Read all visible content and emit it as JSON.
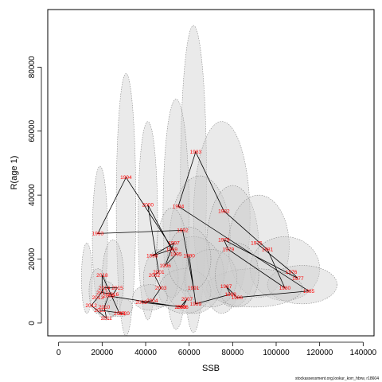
{
  "chart_data": {
    "type": "scatter",
    "title": "",
    "xlabel": "SSB",
    "ylabel": "R(age 1)",
    "xlim": [
      -5000,
      145000
    ],
    "ylim": [
      -4000,
      98000
    ],
    "xticks": [
      0,
      20000,
      40000,
      60000,
      80000,
      100000,
      120000,
      140000
    ],
    "yticks": [
      0,
      20000,
      40000,
      60000,
      80000
    ],
    "grid": false,
    "legend": "none",
    "point_label_color": "#ff0000",
    "ellipse_fill": "#cccccc",
    "line_color": "#000000",
    "points": [
      {
        "label": "1975",
        "x": 91000,
        "y": 25000
      },
      {
        "label": "1976",
        "x": 107000,
        "y": 16000
      },
      {
        "label": "1977",
        "x": 110000,
        "y": 14000
      },
      {
        "label": "1978",
        "x": 76000,
        "y": 26000
      },
      {
        "label": "1979",
        "x": 78000,
        "y": 23000
      },
      {
        "label": "1980",
        "x": 104000,
        "y": 11000
      },
      {
        "label": "1981",
        "x": 96000,
        "y": 23000
      },
      {
        "label": "1982",
        "x": 76000,
        "y": 35000
      },
      {
        "label": "1983",
        "x": 63000,
        "y": 53500
      },
      {
        "label": "1984",
        "x": 55000,
        "y": 36500
      },
      {
        "label": "1985",
        "x": 115000,
        "y": 10000
      },
      {
        "label": "1986",
        "x": 82000,
        "y": 8000
      },
      {
        "label": "1987",
        "x": 77000,
        "y": 11500
      },
      {
        "label": "1988",
        "x": 79000,
        "y": 9000
      },
      {
        "label": "1989",
        "x": 63000,
        "y": 6000
      },
      {
        "label": "1990",
        "x": 60000,
        "y": 21000
      },
      {
        "label": "1991",
        "x": 62000,
        "y": 11000
      },
      {
        "label": "1992",
        "x": 57000,
        "y": 29000
      },
      {
        "label": "1993",
        "x": 18000,
        "y": 28000
      },
      {
        "label": "1994",
        "x": 31000,
        "y": 45500
      },
      {
        "label": "1995",
        "x": 54000,
        "y": 21500
      },
      {
        "label": "1996",
        "x": 49000,
        "y": 18000
      },
      {
        "label": "1997",
        "x": 53000,
        "y": 25000
      },
      {
        "label": "1998",
        "x": 43000,
        "y": 21000
      },
      {
        "label": "1999",
        "x": 52000,
        "y": 23000
      },
      {
        "label": "2000",
        "x": 41000,
        "y": 37000
      },
      {
        "label": "2001",
        "x": 46000,
        "y": 16000
      },
      {
        "label": "2002",
        "x": 44000,
        "y": 15000
      },
      {
        "label": "2003",
        "x": 47000,
        "y": 11000
      },
      {
        "label": "2004",
        "x": 43000,
        "y": 7000
      },
      {
        "label": "2005",
        "x": 38000,
        "y": 6500
      },
      {
        "label": "2006",
        "x": 57000,
        "y": 5000
      },
      {
        "label": "2007",
        "x": 59000,
        "y": 7500
      },
      {
        "label": "2008",
        "x": 56000,
        "y": 5000
      },
      {
        "label": "2009",
        "x": 23000,
        "y": 8500
      },
      {
        "label": "2010",
        "x": 21000,
        "y": 5000
      },
      {
        "label": "2011",
        "x": 22000,
        "y": 1500
      },
      {
        "label": "2012",
        "x": 15000,
        "y": 5500
      },
      {
        "label": "2013",
        "x": 18000,
        "y": 8000
      },
      {
        "label": "2014",
        "x": 21000,
        "y": 11000
      },
      {
        "label": "2015",
        "x": 27000,
        "y": 11000
      },
      {
        "label": "2016",
        "x": 25000,
        "y": 9000
      },
      {
        "label": "2017",
        "x": 20000,
        "y": 9500
      },
      {
        "label": "2018",
        "x": 20000,
        "y": 15000
      },
      {
        "label": "2019",
        "x": 28000,
        "y": 3000
      },
      {
        "label": "2020",
        "x": 30000,
        "y": 3000
      },
      {
        "label": "2021",
        "x": 19000,
        "y": 4000
      }
    ],
    "path_order": [
      "1975",
      "1976",
      "1977",
      "1978",
      "1979",
      "1980",
      "1981",
      "1982",
      "1983",
      "1984",
      "1985",
      "1986",
      "1987",
      "1988",
      "1989",
      "1990",
      "1991",
      "1992",
      "1993",
      "1994",
      "1995",
      "1996",
      "1997",
      "1998",
      "1999",
      "2000",
      "2001",
      "2002",
      "2003",
      "2004",
      "2005",
      "2006",
      "2007",
      "2008",
      "2009",
      "2010",
      "2011",
      "2012",
      "2013",
      "2014",
      "2015",
      "2016",
      "2017",
      "2018",
      "2019",
      "2020",
      "2021"
    ],
    "ellipses": [
      {
        "x": 62000,
        "y": 45000,
        "rx": 6000,
        "ry": 48000
      },
      {
        "x": 31000,
        "y": 37000,
        "rx": 4500,
        "ry": 41000
      },
      {
        "x": 41000,
        "y": 32000,
        "rx": 4500,
        "ry": 31000
      },
      {
        "x": 54000,
        "y": 34000,
        "rx": 6000,
        "ry": 36000
      },
      {
        "x": 75000,
        "y": 33000,
        "rx": 13000,
        "ry": 30000
      },
      {
        "x": 19000,
        "y": 27000,
        "rx": 3500,
        "ry": 22000
      },
      {
        "x": 13000,
        "y": 14000,
        "rx": 2500,
        "ry": 11000
      },
      {
        "x": 25000,
        "y": 14000,
        "rx": 5000,
        "ry": 12000
      },
      {
        "x": 65000,
        "y": 26000,
        "rx": 14000,
        "ry": 20000
      },
      {
        "x": 80000,
        "y": 24000,
        "rx": 12000,
        "ry": 19000
      },
      {
        "x": 92000,
        "y": 24000,
        "rx": 14000,
        "ry": 16000
      },
      {
        "x": 104000,
        "y": 17000,
        "rx": 16000,
        "ry": 10000
      },
      {
        "x": 112000,
        "y": 12000,
        "rx": 16000,
        "ry": 6000
      },
      {
        "x": 90000,
        "y": 11000,
        "rx": 22000,
        "ry": 6000
      },
      {
        "x": 62000,
        "y": 15000,
        "rx": 14000,
        "ry": 12000
      },
      {
        "x": 52000,
        "y": 22000,
        "rx": 7000,
        "ry": 14000
      },
      {
        "x": 47000,
        "y": 14000,
        "rx": 8000,
        "ry": 9000
      },
      {
        "x": 58000,
        "y": 10000,
        "rx": 12000,
        "ry": 7000
      },
      {
        "x": 70000,
        "y": 14000,
        "rx": 12000,
        "ry": 9000
      },
      {
        "x": 42000,
        "y": 8000,
        "rx": 8000,
        "ry": 4000
      },
      {
        "x": 22000,
        "y": 7000,
        "rx": 5000,
        "ry": 6000
      },
      {
        "x": 28000,
        "y": 5000,
        "rx": 6000,
        "ry": 3000
      },
      {
        "x": 18000,
        "y": 10000,
        "rx": 4000,
        "ry": 7000
      },
      {
        "x": 60000,
        "y": 20000,
        "rx": 10000,
        "ry": 10000
      },
      {
        "x": 82000,
        "y": 15000,
        "rx": 10000,
        "ry": 10000
      }
    ]
  },
  "credit": "stockassessment.org,lookur_korr_hbrw, r18604"
}
